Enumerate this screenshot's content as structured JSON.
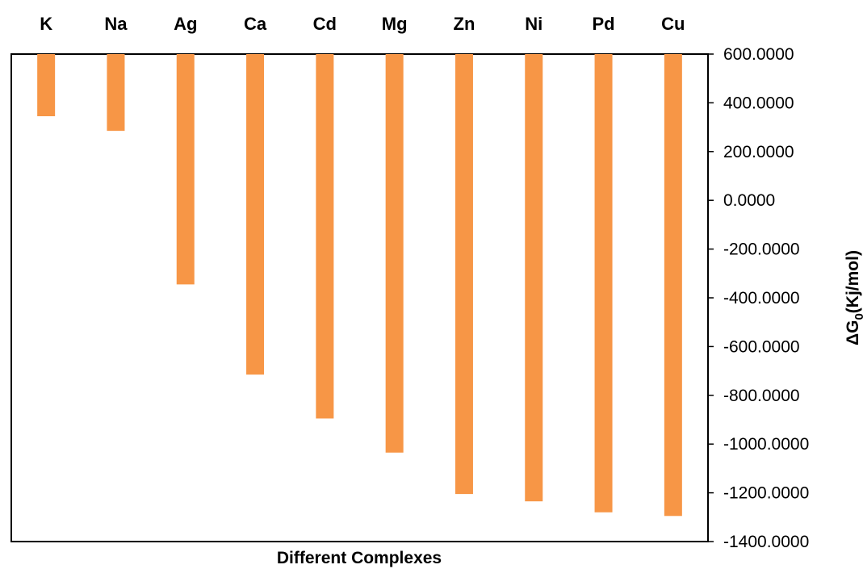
{
  "chart_data": {
    "type": "bar",
    "categories": [
      "K",
      "Na",
      "Ag",
      "Ca",
      "Cd",
      "Mg",
      "Zn",
      "Ni",
      "Pd",
      "Cu"
    ],
    "values": [
      345,
      285,
      -345,
      -715,
      -895,
      -1035,
      -1205,
      -1235,
      -1280,
      -1295
    ],
    "bar_base": 600,
    "ylim": [
      -1400,
      600
    ],
    "yticks": [
      600,
      400,
      200,
      0,
      -200,
      -400,
      -600,
      -800,
      -1000,
      -1200,
      -1400
    ],
    "ytick_labels": [
      "600.0000",
      "400.0000",
      "200.0000",
      "0.0000",
      "-200.0000",
      "-400.0000",
      "-600.0000",
      "-800.0000",
      "-1000.0000",
      "-1200.0000",
      "-1400.0000"
    ],
    "xlabel": "Different Complexes",
    "ylabel_main": "ΔG",
    "ylabel_sub": "0",
    "ylabel_tail": "(Kj/mol)",
    "category_axis_position": "top",
    "value_axis_position": "right",
    "grid": false,
    "bar_color": "#F79646"
  }
}
